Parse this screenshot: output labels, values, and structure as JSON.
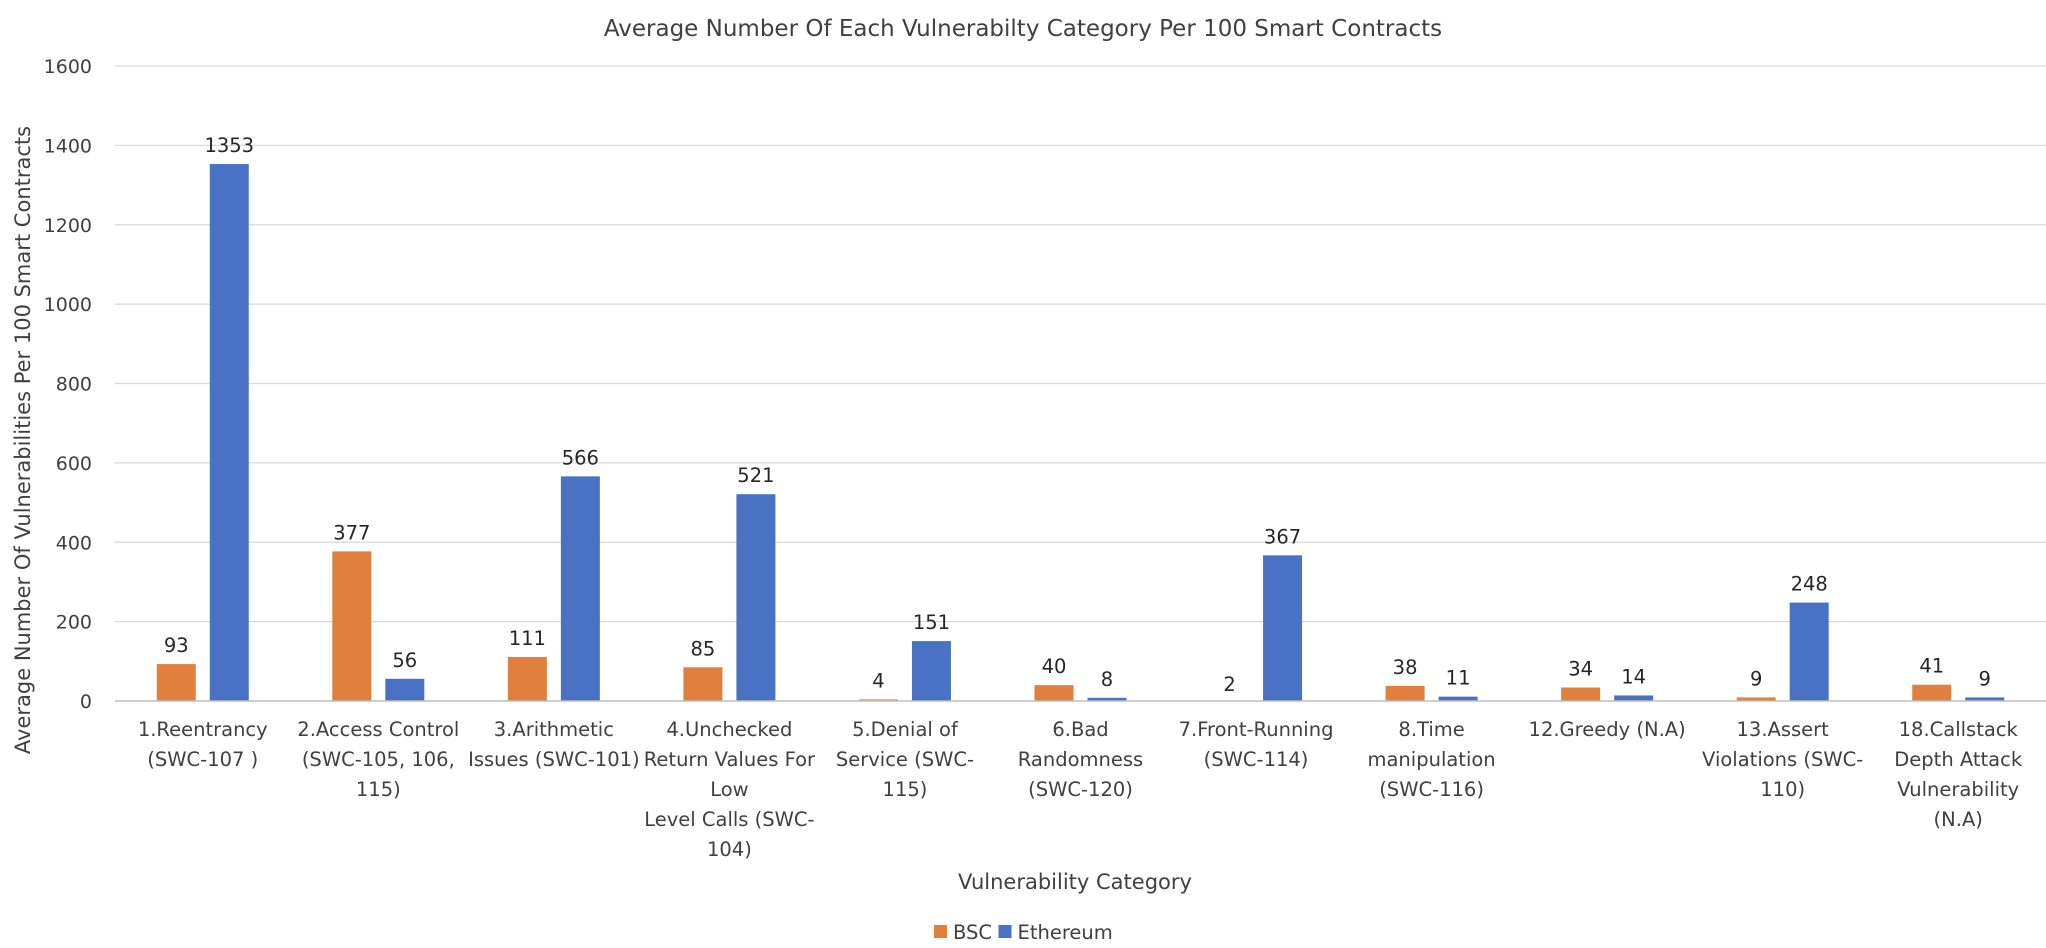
{
  "chart_data": {
    "type": "bar",
    "title": "Average Number Of Each Vulnerabilty Category Per 100 Smart Contracts",
    "xlabel": "Vulnerability Category",
    "ylabel": "Average Number Of Vulnerabilities Per 100 Smart Contracts",
    "ylim": [
      0,
      1600
    ],
    "yticks": [
      "0",
      "200",
      "400",
      "600",
      "800",
      "1000",
      "1200",
      "1400",
      "1600"
    ],
    "grid": true,
    "legend_position": "bottom",
    "categories": [
      [
        "1.Reentrancy",
        "(SWC-107 )"
      ],
      [
        "2.Access Control",
        "(SWC-105, 106,",
        "115)"
      ],
      [
        "3.Arithmetic",
        "Issues (SWC-101)"
      ],
      [
        "4.Unchecked",
        "Return Values For",
        "Low",
        "Level Calls (SWC-",
        "104)"
      ],
      [
        "5.Denial of",
        "Service (SWC-",
        "115)"
      ],
      [
        "6.Bad",
        "Randomness",
        "(SWC-120)"
      ],
      [
        "7.Front-Running",
        "(SWC-114)"
      ],
      [
        "8.Time",
        "manipulation",
        "(SWC-116)"
      ],
      [
        "12.Greedy (N.A)"
      ],
      [
        "13.Assert",
        "Violations  (SWC-",
        "110)"
      ],
      [
        "18.Callstack",
        "Depth Attack",
        "Vulnerability",
        "(N.A)"
      ]
    ],
    "series": [
      {
        "name": "BSC",
        "color": "#e07f3e",
        "values": [
          93,
          377,
          111,
          85,
          4,
          40,
          null,
          38,
          34,
          9,
          41
        ],
        "labels": [
          "93",
          "377",
          "111",
          "85",
          "4",
          "40",
          "",
          "38",
          "34",
          "9",
          "41"
        ]
      },
      {
        "name": "Ethereum",
        "color": "#4a72c4",
        "values": [
          1353,
          56,
          566,
          521,
          151,
          8,
          367,
          11,
          14,
          248,
          9
        ],
        "labels": [
          "1353",
          "56",
          "566",
          "521",
          "151",
          "8",
          "367",
          "11",
          "14",
          "248",
          "9"
        ]
      }
    ],
    "annotations": [
      {
        "text": "2",
        "category_index": 6
      }
    ]
  }
}
